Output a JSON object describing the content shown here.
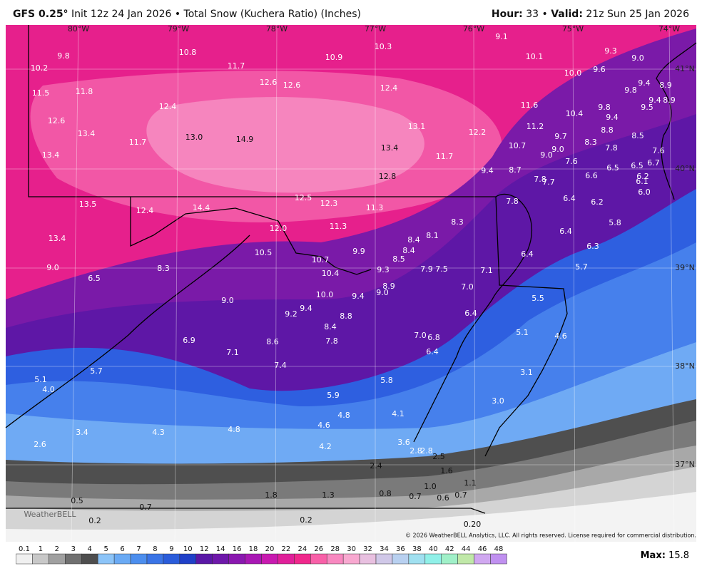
{
  "header": {
    "model": "GFS 0.25°",
    "description": "Init 12z 24 Jan 2026 • Total Snow (Kuchera Ratio) (Inches)",
    "hour_label": "Hour:",
    "hour": "33",
    "separator": "•",
    "valid_label": "Valid:",
    "valid": "21z Sun 25 Jan 2026"
  },
  "longitudes": [
    "80°W",
    "79°W",
    "78°W",
    "77°W",
    "76°W",
    "75°W",
    "74°W"
  ],
  "latitudes": [
    "41°N",
    "40°N",
    "39°N",
    "38°N",
    "37°N"
  ],
  "map": {
    "labels": [
      "9.8",
      "10.2",
      "11.5",
      "11.8",
      "12.6",
      "13.4",
      "13.4",
      "11.7",
      "12.4",
      "13.0",
      "14.9",
      "10.8",
      "11.7",
      "12.6",
      "12.6",
      "10.9",
      "10.3",
      "12.4",
      "13.1",
      "12.2",
      "13.4",
      "11.7",
      "12.8",
      "9.4",
      "9.1",
      "10.1",
      "9.3",
      "9.0",
      "10.0",
      "9.6",
      "9.4",
      "9.8",
      "8.9",
      "11.6",
      "10.4",
      "9.8",
      "9.4",
      "9.4",
      "8.9",
      "9.5",
      "11.2",
      "9.7",
      "8.8",
      "8.5",
      "8.3",
      "7.8",
      "9.0",
      "10.7",
      "9.0",
      "7.6",
      "7.6",
      "6.7",
      "6.5",
      "6.5",
      "6.6",
      "6.2",
      "6.1",
      "8.7",
      "7.8",
      "7.7",
      "6.0",
      "6.4",
      "6.2",
      "13.5",
      "12.4",
      "14.4",
      "12.5",
      "12.3",
      "11.3",
      "12.0",
      "11.3",
      "13.4",
      "7.8",
      "5.8",
      "6.4",
      "8.3",
      "8.1",
      "8.4",
      "8.4",
      "8.5",
      "9.9",
      "10.5",
      "10.7",
      "6.3",
      "6.4",
      "5.7",
      "9.0",
      "8.3",
      "6.5",
      "10.4",
      "9.3",
      "7.9",
      "7.5",
      "7.1",
      "8.9",
      "9.0",
      "10.0",
      "9.4",
      "7.0",
      "5.5",
      "9.0",
      "9.4",
      "9.2",
      "8.8",
      "6.4",
      "8.4",
      "7.8",
      "7.0",
      "6.8",
      "5.1",
      "4.6",
      "6.9",
      "8.6",
      "6.4",
      "7.1",
      "7.4",
      "3.1",
      "5.1",
      "5.7",
      "4.0",
      "5.8",
      "5.9",
      "3.0",
      "4.8",
      "4.1",
      "3.4",
      "4.3",
      "4.8",
      "4.6",
      "2.6",
      "4.2",
      "3.6",
      "2.8",
      "2.8",
      "2.5",
      "2.4",
      "1.6",
      "1.1",
      "1.0",
      "1.8",
      "1.3",
      "0.8",
      "0.7",
      "0.6",
      "0.7",
      "0.5",
      "0.7",
      "0.2",
      "0.2",
      "0.20"
    ]
  },
  "watermark": "WeatherBELL",
  "copyright": "© 2026 WeatherBELL Analytics, LLC. All rights reserved. License required for commercial distribution.",
  "colorbar": {
    "ticks": [
      0.1,
      1,
      2,
      3,
      4,
      5,
      6,
      7,
      8,
      9,
      10,
      12,
      14,
      16,
      18,
      20,
      22,
      24,
      26,
      28,
      30,
      32,
      34,
      36,
      38,
      40,
      42,
      44,
      46,
      48
    ]
  },
  "max": {
    "label": "Max:",
    "value": "15.8"
  }
}
